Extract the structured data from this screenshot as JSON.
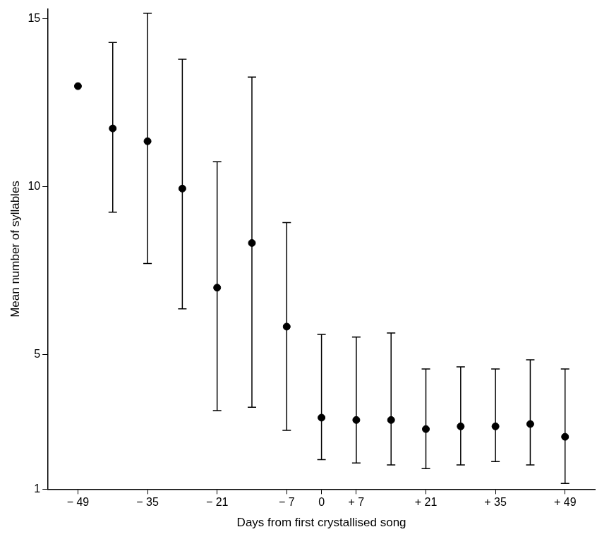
{
  "chart_data": {
    "type": "scatter",
    "x_label": "Days from first crystallised song",
    "y_label": "Mean number of syllables",
    "x": [
      -49,
      -42,
      -35,
      -28,
      -21,
      -14,
      -7,
      0,
      7,
      14,
      21,
      28,
      35,
      42,
      49
    ],
    "values": [
      13.0,
      11.74,
      11.36,
      9.95,
      7.0,
      8.33,
      5.84,
      3.13,
      3.06,
      3.06,
      2.79,
      2.87,
      2.87,
      2.94,
      2.56
    ],
    "error_low": [
      null,
      9.25,
      7.72,
      6.37,
      3.34,
      3.44,
      2.75,
      1.88,
      1.78,
      1.72,
      1.61,
      1.72,
      1.82,
      1.72,
      1.17
    ],
    "error_high": [
      null,
      14.3,
      15.17,
      13.8,
      10.75,
      13.27,
      8.94,
      5.61,
      5.53,
      5.65,
      4.58,
      4.64,
      4.58,
      4.85,
      4.58
    ],
    "color": "#000000",
    "marker": "circle",
    "xlim": [
      -55,
      55
    ],
    "xticks": [
      {
        "value": -49,
        "label": "− 49"
      },
      {
        "value": -35,
        "label": "− 35"
      },
      {
        "value": -21,
        "label": "− 21"
      },
      {
        "value": -7,
        "label": "− 7"
      },
      0,
      {
        "value": 7,
        "label": "+ 7"
      },
      {
        "value": 21,
        "label": "+ 21"
      },
      {
        "value": 35,
        "label": "+ 35"
      },
      {
        "value": 49,
        "label": "+ 49"
      }
    ],
    "ylim": [
      1,
      15.3
    ],
    "yticks": [
      1,
      5,
      10,
      15
    ],
    "grid": false
  }
}
